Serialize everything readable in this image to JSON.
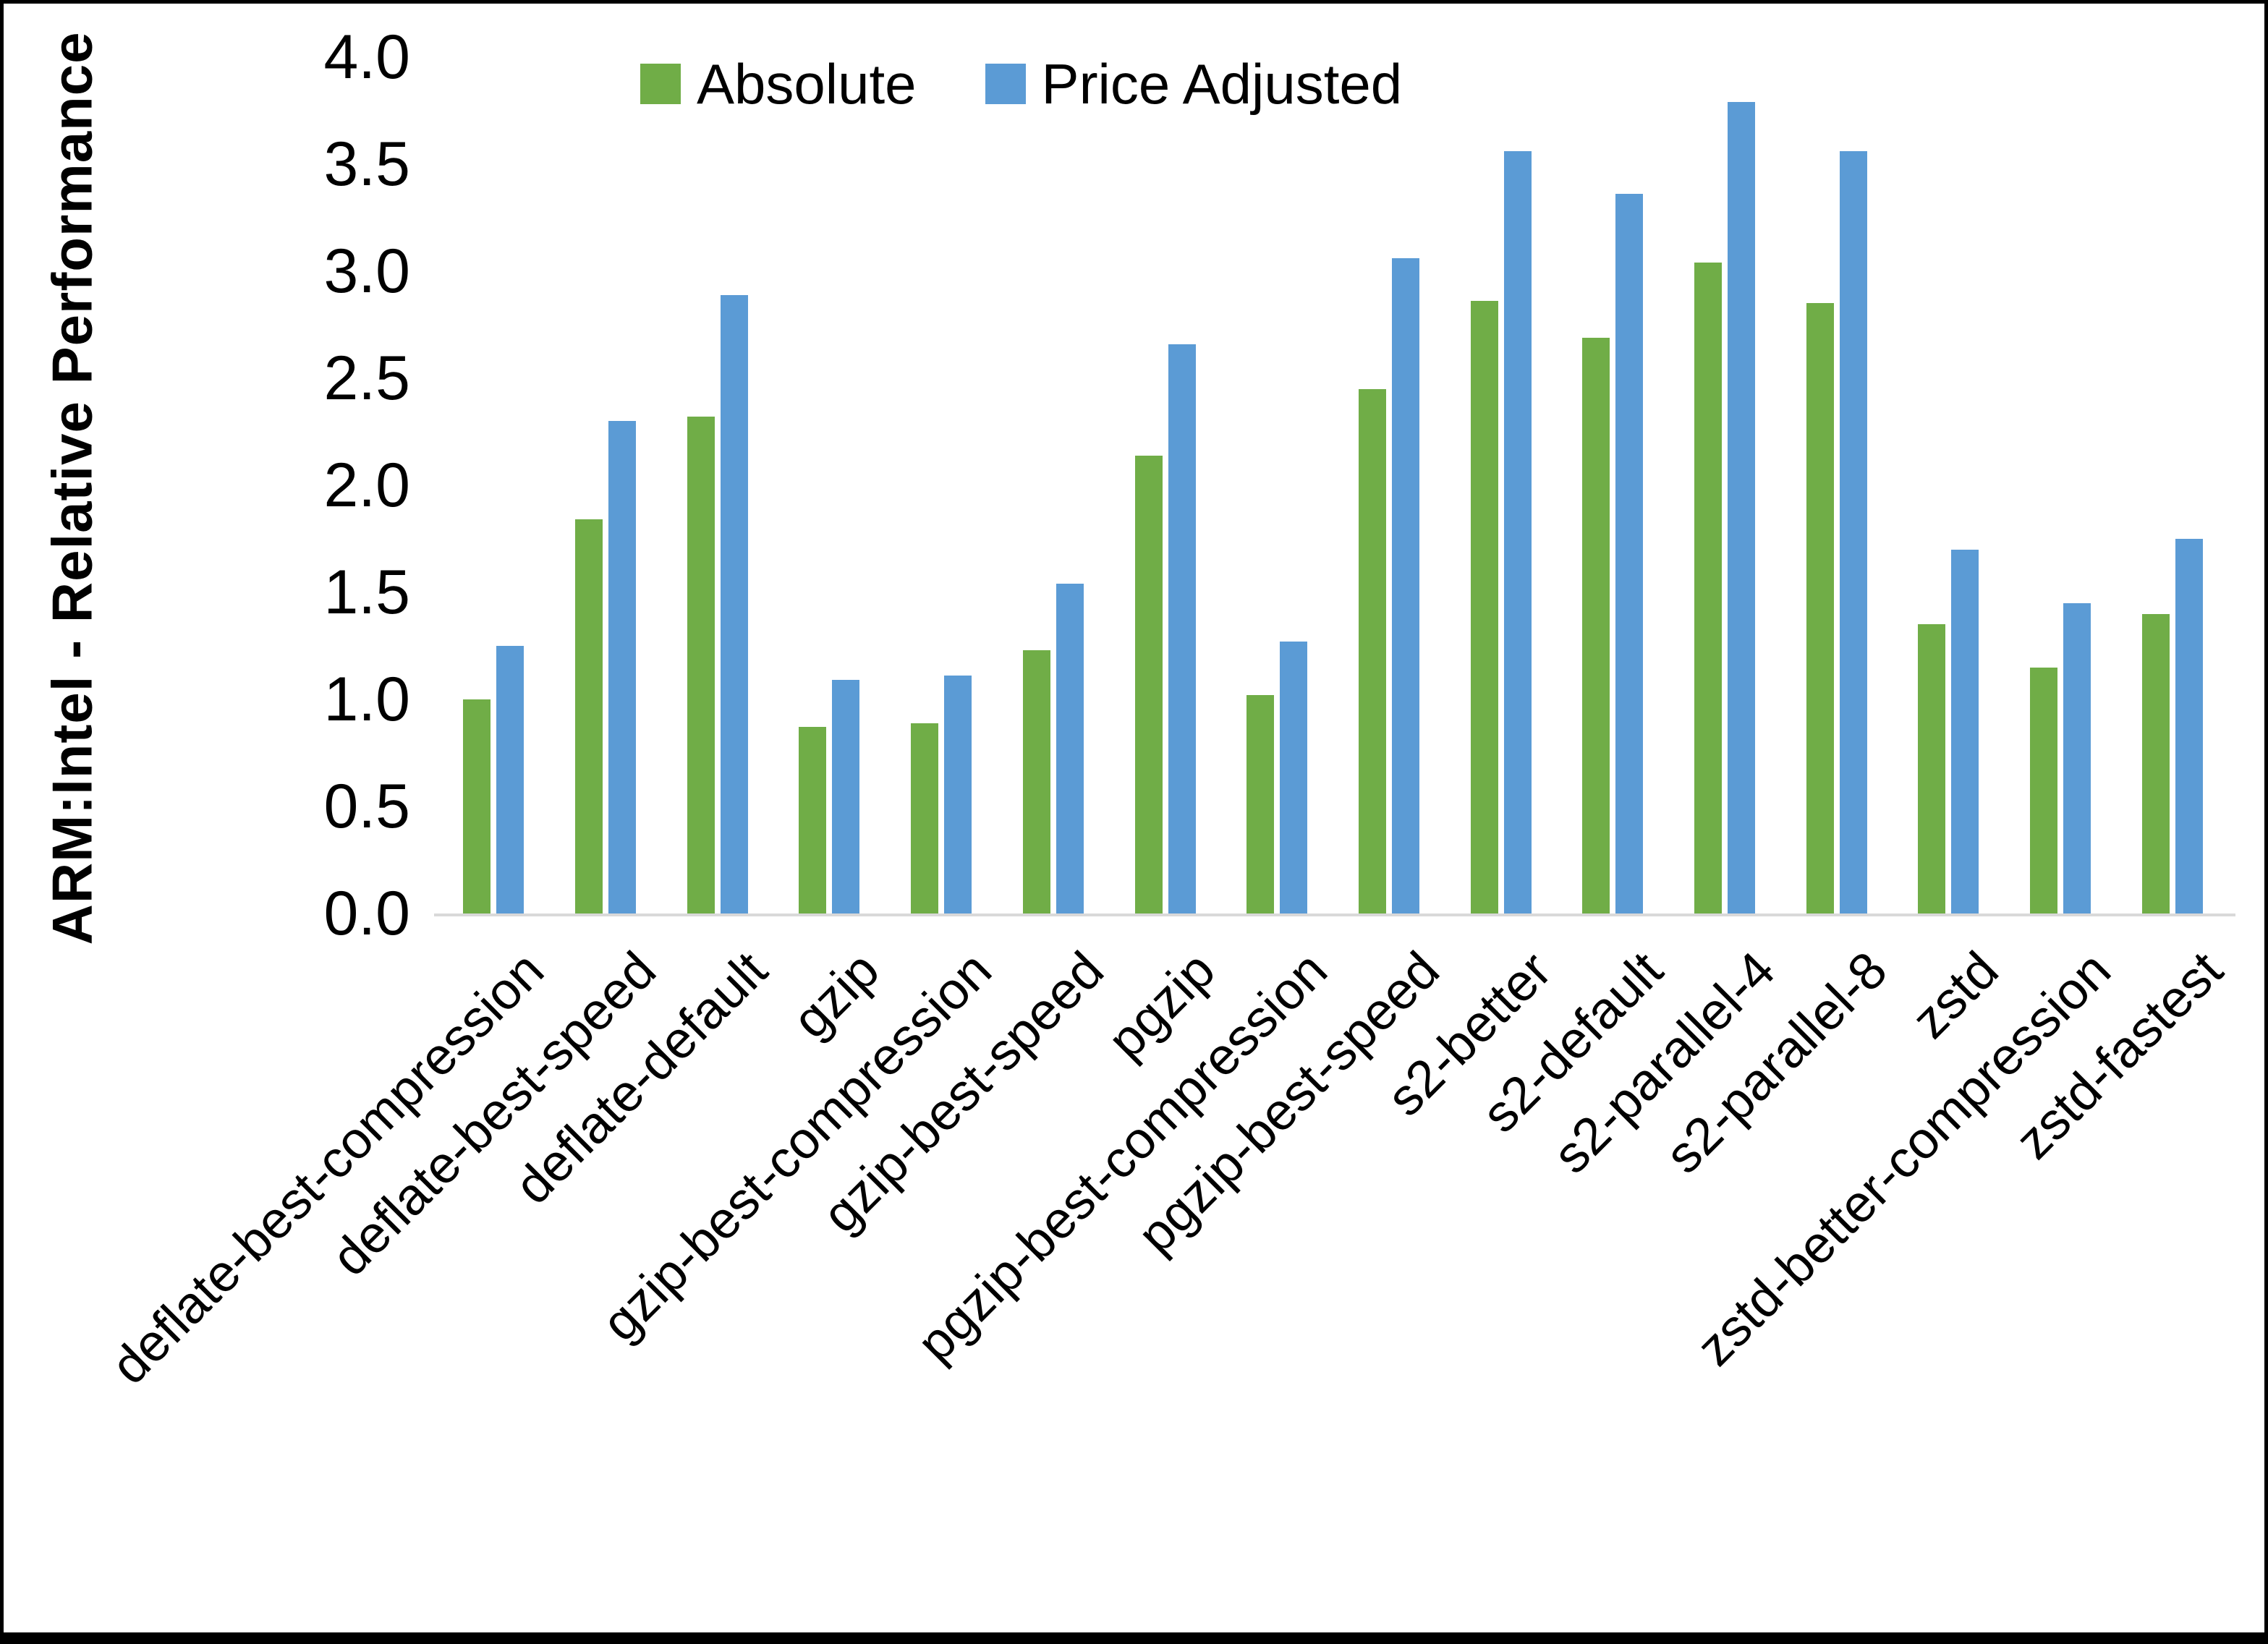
{
  "chart_data": {
    "type": "bar",
    "title": "",
    "xlabel": "",
    "ylabel": "ARM:Intel - Relative Performance",
    "ylim": [
      0,
      4
    ],
    "ytick_step": 0.5,
    "yticks": [
      "4.0",
      "3.5",
      "3.0",
      "2.5",
      "2.0",
      "1.5",
      "1.0",
      "0.5",
      "0.0"
    ],
    "grid": false,
    "legend_position": "top-center",
    "categories": [
      "deflate-best-compression",
      "deflate-best-speed",
      "deflate-default",
      "gzip",
      "gzip-best-compression",
      "gzip-best-speed",
      "pgzip",
      "pgzip-best-compression",
      "pgzip-best-speed",
      "s2-better",
      "s2-default",
      "s2-parallel-4",
      "s2-parallel-8",
      "zstd",
      "zstd-better-compression",
      "zstd-fastest"
    ],
    "series": [
      {
        "name": "Absolute",
        "color": "#70AD47",
        "values": [
          1.0,
          1.84,
          2.32,
          0.87,
          0.89,
          1.23,
          2.14,
          1.02,
          2.45,
          2.86,
          2.69,
          3.04,
          2.85,
          1.35,
          1.15,
          1.4
        ]
      },
      {
        "name": "Price Adjusted",
        "color": "#5B9BD5",
        "values": [
          1.25,
          2.3,
          2.89,
          1.09,
          1.11,
          1.54,
          2.66,
          1.27,
          3.06,
          3.56,
          3.36,
          3.79,
          3.56,
          1.7,
          1.45,
          1.75
        ]
      }
    ]
  },
  "legend": {
    "items": [
      {
        "label": "Absolute",
        "color": "#70AD47"
      },
      {
        "label": "Price Adjusted",
        "color": "#5B9BD5"
      }
    ]
  },
  "axis": {
    "baseline_color": "#d9d9d9",
    "text_color": "#000000"
  },
  "frame": {
    "background": "#ffffff",
    "border_color": "#000000"
  }
}
